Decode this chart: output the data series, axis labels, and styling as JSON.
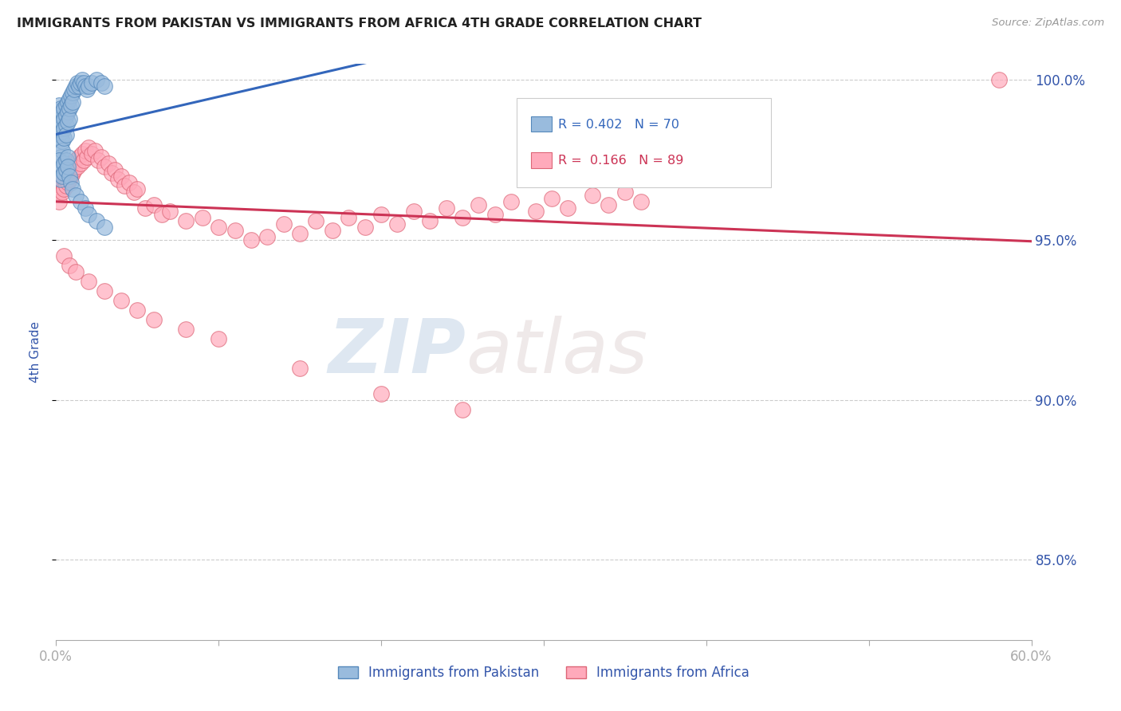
{
  "title": "IMMIGRANTS FROM PAKISTAN VS IMMIGRANTS FROM AFRICA 4TH GRADE CORRELATION CHART",
  "source": "Source: ZipAtlas.com",
  "ylabel": "4th Grade",
  "x_min": 0.0,
  "x_max": 0.6,
  "y_min": 0.825,
  "y_max": 1.005,
  "x_ticks": [
    0.0,
    0.1,
    0.2,
    0.3,
    0.4,
    0.5,
    0.6
  ],
  "x_tick_labels": [
    "0.0%",
    "",
    "",
    "",
    "",
    "",
    "60.0%"
  ],
  "y_ticks": [
    0.85,
    0.9,
    0.95,
    1.0
  ],
  "y_tick_labels": [
    "85.0%",
    "90.0%",
    "95.0%",
    "100.0%"
  ],
  "pakistan_color": "#99BBDD",
  "pakistan_edge": "#5588BB",
  "africa_color": "#FFAABB",
  "africa_edge": "#DD6677",
  "pakistan_line_color": "#3366BB",
  "africa_line_color": "#CC3355",
  "R_pakistan": 0.402,
  "N_pakistan": 70,
  "R_africa": 0.166,
  "N_africa": 89,
  "pakistan_x": [
    0.001,
    0.001,
    0.001,
    0.002,
    0.002,
    0.002,
    0.002,
    0.003,
    0.003,
    0.003,
    0.003,
    0.003,
    0.003,
    0.004,
    0.004,
    0.004,
    0.004,
    0.004,
    0.005,
    0.005,
    0.005,
    0.005,
    0.006,
    0.006,
    0.006,
    0.006,
    0.007,
    0.007,
    0.007,
    0.008,
    0.008,
    0.008,
    0.009,
    0.009,
    0.01,
    0.01,
    0.011,
    0.012,
    0.013,
    0.014,
    0.015,
    0.016,
    0.017,
    0.018,
    0.019,
    0.02,
    0.022,
    0.025,
    0.028,
    0.03,
    0.002,
    0.003,
    0.003,
    0.004,
    0.004,
    0.005,
    0.005,
    0.006,
    0.006,
    0.007,
    0.007,
    0.008,
    0.009,
    0.01,
    0.012,
    0.015,
    0.018,
    0.02,
    0.025,
    0.03
  ],
  "pakistan_y": [
    0.99,
    0.988,
    0.985,
    0.992,
    0.989,
    0.986,
    0.983,
    0.991,
    0.988,
    0.985,
    0.982,
    0.979,
    0.976,
    0.99,
    0.987,
    0.984,
    0.981,
    0.978,
    0.991,
    0.988,
    0.985,
    0.982,
    0.992,
    0.989,
    0.986,
    0.983,
    0.993,
    0.99,
    0.987,
    0.994,
    0.991,
    0.988,
    0.995,
    0.992,
    0.996,
    0.993,
    0.997,
    0.998,
    0.999,
    0.998,
    0.999,
    1.0,
    0.999,
    0.998,
    0.997,
    0.998,
    0.999,
    1.0,
    0.999,
    0.998,
    0.975,
    0.972,
    0.969,
    0.973,
    0.97,
    0.974,
    0.971,
    0.975,
    0.972,
    0.976,
    0.973,
    0.97,
    0.968,
    0.966,
    0.964,
    0.962,
    0.96,
    0.958,
    0.956,
    0.954
  ],
  "africa_x": [
    0.001,
    0.002,
    0.002,
    0.003,
    0.003,
    0.004,
    0.004,
    0.005,
    0.005,
    0.006,
    0.006,
    0.007,
    0.007,
    0.008,
    0.008,
    0.009,
    0.009,
    0.01,
    0.01,
    0.011,
    0.012,
    0.013,
    0.014,
    0.015,
    0.016,
    0.017,
    0.018,
    0.019,
    0.02,
    0.022,
    0.024,
    0.026,
    0.028,
    0.03,
    0.032,
    0.034,
    0.036,
    0.038,
    0.04,
    0.042,
    0.045,
    0.048,
    0.05,
    0.055,
    0.06,
    0.065,
    0.07,
    0.08,
    0.09,
    0.1,
    0.11,
    0.12,
    0.13,
    0.14,
    0.15,
    0.16,
    0.17,
    0.18,
    0.19,
    0.2,
    0.21,
    0.22,
    0.23,
    0.24,
    0.25,
    0.26,
    0.27,
    0.28,
    0.295,
    0.305,
    0.315,
    0.33,
    0.34,
    0.35,
    0.36,
    0.005,
    0.008,
    0.012,
    0.02,
    0.03,
    0.04,
    0.05,
    0.06,
    0.08,
    0.1,
    0.15,
    0.2,
    0.25,
    0.58
  ],
  "africa_y": [
    0.968,
    0.965,
    0.962,
    0.97,
    0.967,
    0.968,
    0.965,
    0.969,
    0.966,
    0.97,
    0.967,
    0.971,
    0.968,
    0.972,
    0.969,
    0.973,
    0.97,
    0.974,
    0.971,
    0.972,
    0.975,
    0.973,
    0.976,
    0.974,
    0.977,
    0.975,
    0.978,
    0.976,
    0.979,
    0.977,
    0.978,
    0.975,
    0.976,
    0.973,
    0.974,
    0.971,
    0.972,
    0.969,
    0.97,
    0.967,
    0.968,
    0.965,
    0.966,
    0.96,
    0.961,
    0.958,
    0.959,
    0.956,
    0.957,
    0.954,
    0.953,
    0.95,
    0.951,
    0.955,
    0.952,
    0.956,
    0.953,
    0.957,
    0.954,
    0.958,
    0.955,
    0.959,
    0.956,
    0.96,
    0.957,
    0.961,
    0.958,
    0.962,
    0.959,
    0.963,
    0.96,
    0.964,
    0.961,
    0.965,
    0.962,
    0.945,
    0.942,
    0.94,
    0.937,
    0.934,
    0.931,
    0.928,
    0.925,
    0.922,
    0.919,
    0.91,
    0.902,
    0.897,
    1.0
  ],
  "watermark_zip": "ZIP",
  "watermark_atlas": "atlas",
  "background_color": "#ffffff",
  "grid_color": "#cccccc",
  "title_color": "#222222",
  "tick_label_color": "#3355AA",
  "legend_label1": "Immigrants from Pakistan",
  "legend_label2": "Immigrants from Africa"
}
